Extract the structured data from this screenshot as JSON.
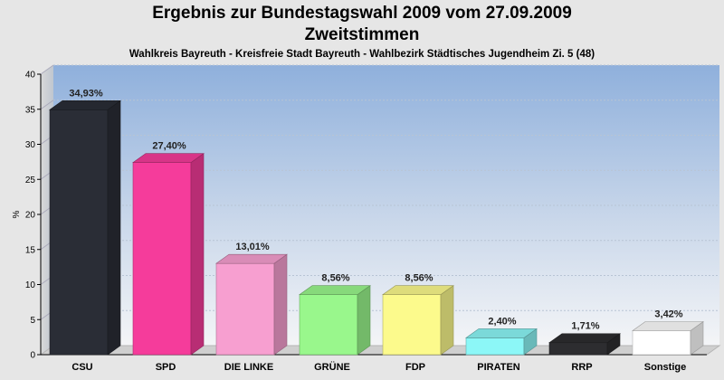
{
  "title": "Ergebnis zur Bundestagswahl 2009 vom 27.09.2009",
  "subtitle": "Zweitstimmen",
  "subtitle2": "Wahlkreis Bayreuth - Kreisfreie Stadt Bayreuth - Wahlbezirk Städtisches Jugendheim Zi. 5 (48)",
  "chart_data": {
    "type": "bar",
    "title": "Ergebnis zur Bundestagswahl 2009 vom 27.09.2009",
    "subtitle": "Zweitstimmen",
    "ylabel": "%",
    "xlabel": "",
    "ylim": [
      0,
      40
    ],
    "yticks": [
      0,
      5,
      10,
      15,
      20,
      25,
      30,
      35,
      40
    ],
    "grid": true,
    "categories": [
      "CSU",
      "SPD",
      "DIE LINKE",
      "GRÜNE",
      "FDP",
      "PIRATEN",
      "RRP",
      "Sonstige"
    ],
    "values": [
      34.93,
      27.4,
      13.01,
      8.56,
      8.56,
      2.4,
      1.71,
      3.42
    ],
    "data_labels": [
      "34,93%",
      "27,40%",
      "13,01%",
      "8,56%",
      "8,56%",
      "2,40%",
      "1,71%",
      "3,42%"
    ],
    "colors": [
      "#2a2d36",
      "#f53c9b",
      "#f79fd0",
      "#99f78c",
      "#fcfa8c",
      "#8cf7f7",
      "#2d2d30",
      "#ffffff"
    ]
  }
}
